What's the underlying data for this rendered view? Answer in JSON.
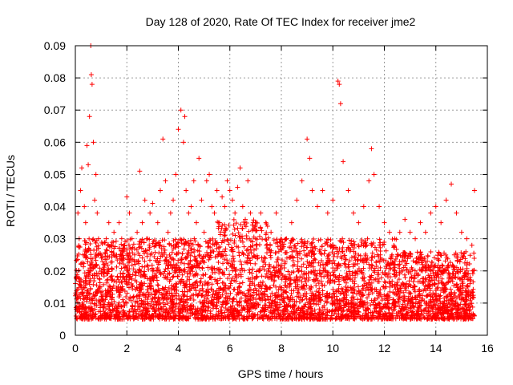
{
  "chart_data": {
    "type": "scatter",
    "title": "Day 128 of 2020, Rate Of TEC Index for receiver jme2",
    "xlabel": "GPS time / hours",
    "ylabel": "ROTI / TECUs",
    "xlim": [
      0,
      16
    ],
    "ylim": [
      0,
      0.09
    ],
    "xticks": [
      0,
      2,
      4,
      6,
      8,
      10,
      12,
      14,
      16
    ],
    "xtick_labels": [
      "0",
      "2",
      "4",
      "6",
      "8",
      "10",
      "12",
      "14",
      "16"
    ],
    "yticks": [
      0,
      0.01,
      0.02,
      0.03,
      0.04,
      0.05,
      0.06,
      0.07,
      0.08,
      0.09
    ],
    "ytick_labels": [
      "0",
      "0.01",
      "0.02",
      "0.03",
      "0.04",
      "0.05",
      "0.06",
      "0.07",
      "0.08",
      "0.09"
    ],
    "grid": true,
    "marker": "+",
    "marker_color": "#ff0000",
    "series": [
      {
        "name": "ROTI",
        "x": [
          0.05,
          0.1,
          0.15,
          0.2,
          0.25,
          0.3,
          0.35,
          0.4,
          0.45,
          0.5,
          0.55,
          0.6,
          0.62,
          0.65,
          0.7,
          0.75,
          0.8,
          0.85,
          0.9,
          1.0,
          1.1,
          1.2,
          1.3,
          1.4,
          1.5,
          1.6,
          1.7,
          1.8,
          1.9,
          2.0,
          2.1,
          2.2,
          2.3,
          2.4,
          2.5,
          2.6,
          2.7,
          2.8,
          2.9,
          3.0,
          3.1,
          3.2,
          3.3,
          3.4,
          3.5,
          3.6,
          3.7,
          3.8,
          3.9,
          4.0,
          4.1,
          4.2,
          4.25,
          4.3,
          4.4,
          4.5,
          4.6,
          4.7,
          4.8,
          4.9,
          5.0,
          5.1,
          5.2,
          5.3,
          5.4,
          5.5,
          5.6,
          5.7,
          5.8,
          5.9,
          6.0,
          6.1,
          6.2,
          6.3,
          6.4,
          6.5,
          6.6,
          6.7,
          6.8,
          6.9,
          7.0,
          7.2,
          7.4,
          7.6,
          7.8,
          8.0,
          8.2,
          8.4,
          8.6,
          8.8,
          9.0,
          9.1,
          9.2,
          9.4,
          9.6,
          9.8,
          10.0,
          10.2,
          10.25,
          10.3,
          10.4,
          10.6,
          10.8,
          11.0,
          11.2,
          11.4,
          11.5,
          11.6,
          11.8,
          12.0,
          12.2,
          12.4,
          12.6,
          12.8,
          13.0,
          13.2,
          13.4,
          13.6,
          13.8,
          14.0,
          14.2,
          14.4,
          14.6,
          14.8,
          15.0,
          15.2,
          15.4,
          15.5
        ],
        "y": [
          0.018,
          0.038,
          0.03,
          0.045,
          0.052,
          0.025,
          0.04,
          0.035,
          0.059,
          0.053,
          0.068,
          0.09,
          0.081,
          0.078,
          0.06,
          0.042,
          0.05,
          0.038,
          0.03,
          0.025,
          0.022,
          0.03,
          0.035,
          0.028,
          0.032,
          0.025,
          0.035,
          0.03,
          0.028,
          0.043,
          0.038,
          0.03,
          0.025,
          0.032,
          0.051,
          0.035,
          0.042,
          0.03,
          0.038,
          0.041,
          0.028,
          0.035,
          0.045,
          0.061,
          0.048,
          0.032,
          0.038,
          0.042,
          0.05,
          0.064,
          0.07,
          0.06,
          0.068,
          0.045,
          0.038,
          0.04,
          0.048,
          0.035,
          0.055,
          0.042,
          0.032,
          0.048,
          0.05,
          0.04,
          0.038,
          0.045,
          0.035,
          0.043,
          0.04,
          0.048,
          0.045,
          0.042,
          0.038,
          0.046,
          0.052,
          0.04,
          0.036,
          0.048,
          0.038,
          0.035,
          0.03,
          0.038,
          0.035,
          0.032,
          0.038,
          0.028,
          0.03,
          0.035,
          0.042,
          0.048,
          0.061,
          0.055,
          0.045,
          0.04,
          0.045,
          0.038,
          0.042,
          0.079,
          0.078,
          0.072,
          0.054,
          0.045,
          0.038,
          0.035,
          0.04,
          0.048,
          0.058,
          0.05,
          0.04,
          0.035,
          0.032,
          0.03,
          0.032,
          0.036,
          0.032,
          0.03,
          0.035,
          0.032,
          0.038,
          0.04,
          0.035,
          0.042,
          0.047,
          0.038,
          0.032,
          0.03,
          0.028,
          0.045
        ]
      }
    ],
    "baseline_band": {
      "low": 0.005,
      "high": 0.03
    }
  }
}
